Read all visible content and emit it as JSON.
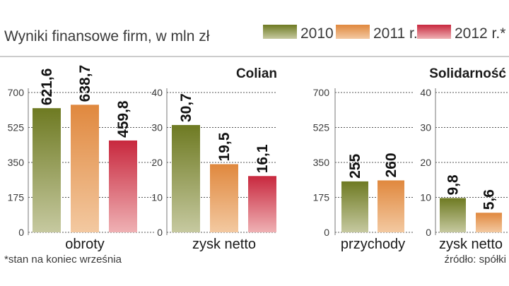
{
  "header": {
    "title": "Wyniki finansowe firm, w mln zł",
    "legend": [
      {
        "label": "2010 r.",
        "swatch": "2010"
      },
      {
        "label": "2011 r.",
        "swatch": "2011"
      },
      {
        "label": "2012 r.*",
        "swatch": "2012"
      }
    ]
  },
  "colors": {
    "2010": {
      "top": "#6e7a22",
      "bottom": "#c6c9a0"
    },
    "2011": {
      "top": "#e0883e",
      "bottom": "#f3c9a1"
    },
    "2012": {
      "top": "#c8283e",
      "bottom": "#efb1b4"
    }
  },
  "footer": {
    "note": "*stan na koniec września",
    "source": "źródło: spółki"
  },
  "chart_data": [
    {
      "type": "bar",
      "company": "",
      "xlabel": "obroty",
      "categories": [
        "2010 r.",
        "2011 r.",
        "2012 r.*"
      ],
      "values": [
        621.6,
        638.7,
        459.8
      ],
      "value_labels": [
        "621,6",
        "638,7",
        "459,8"
      ],
      "ylim": [
        0,
        700
      ],
      "yticks": [
        "0",
        "175",
        "350",
        "525",
        "700"
      ],
      "grid": true
    },
    {
      "type": "bar",
      "company": "Colian",
      "xlabel": "zysk netto",
      "categories": [
        "2010 r.",
        "2011 r.",
        "2012 r.*"
      ],
      "values": [
        30.7,
        19.5,
        16.1
      ],
      "value_labels": [
        "30,7",
        "19,5",
        "16,1"
      ],
      "ylim": [
        0,
        40
      ],
      "yticks": [
        "0",
        "10",
        "20",
        "30",
        "40"
      ],
      "grid": true
    },
    {
      "type": "bar",
      "company": "",
      "xlabel": "przychody",
      "categories": [
        "2010 r.",
        "2011 r."
      ],
      "values": [
        255,
        260
      ],
      "value_labels": [
        "255",
        "260"
      ],
      "ylim": [
        0,
        700
      ],
      "yticks": [
        "0",
        "175",
        "350",
        "525",
        "700"
      ],
      "grid": true
    },
    {
      "type": "bar",
      "company": "Solidarność",
      "xlabel": "zysk netto",
      "categories": [
        "2010 r.",
        "2011 r."
      ],
      "values": [
        9.8,
        5.6
      ],
      "value_labels": [
        "9,8",
        "5,6"
      ],
      "ylim": [
        0,
        40
      ],
      "yticks": [
        "0",
        "10",
        "20",
        "30",
        "40"
      ],
      "grid": true
    }
  ]
}
